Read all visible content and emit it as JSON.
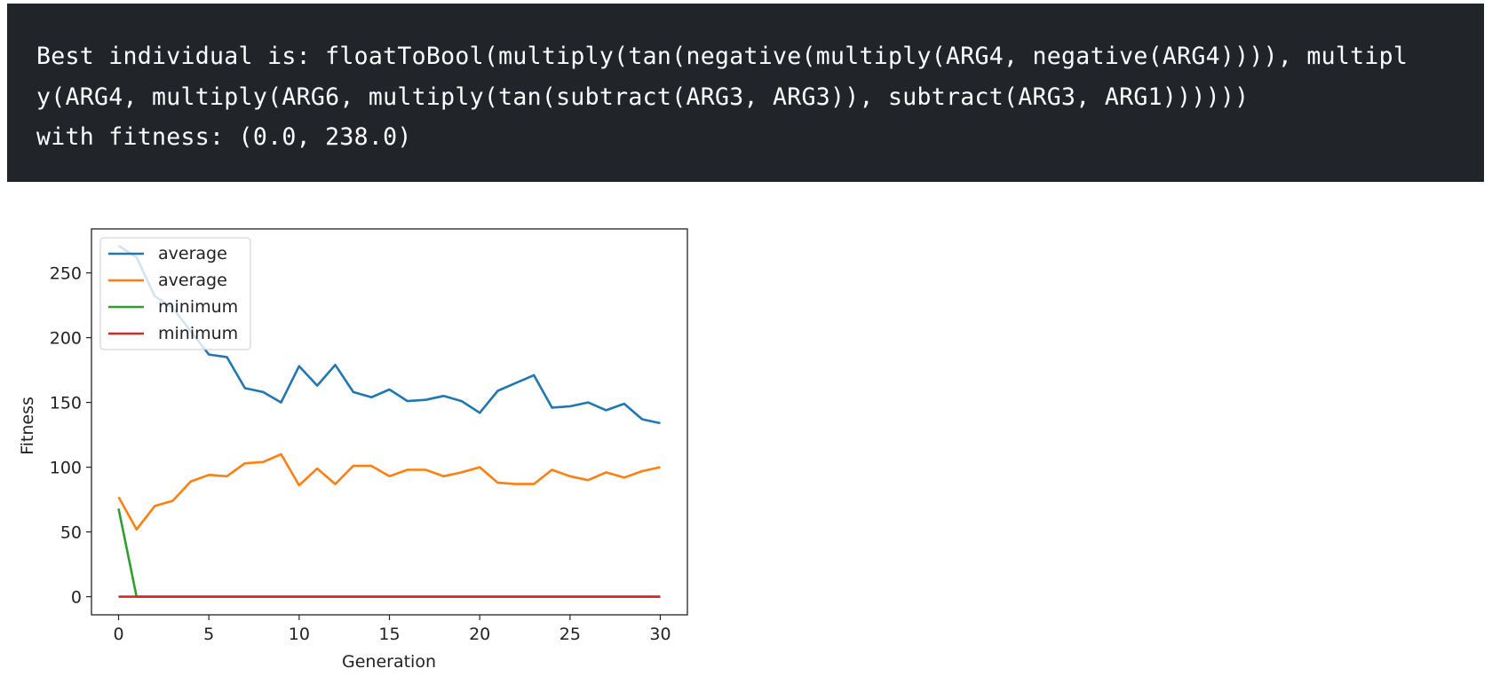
{
  "output": {
    "lines": [
      "Best individual is: floatToBool(multiply(tan(negative(multiply(ARG4, negative(ARG4)))), multipl",
      "y(ARG4, multiply(ARG6, multiply(tan(subtract(ARG3, ARG3)), subtract(ARG3, ARG1))))))",
      "with fitness: (0.0, 238.0)"
    ]
  },
  "chart_data": {
    "type": "line",
    "title": "",
    "xlabel": "Generation",
    "ylabel": "Fitness",
    "xlim": [
      -1.5,
      31.5
    ],
    "ylim": [
      -14,
      284
    ],
    "xticks": [
      0,
      5,
      10,
      15,
      20,
      25,
      30
    ],
    "yticks": [
      0,
      50,
      100,
      150,
      200,
      250
    ],
    "legend_position": "upper left",
    "grid": false,
    "x": [
      0,
      1,
      2,
      3,
      4,
      5,
      6,
      7,
      8,
      9,
      10,
      11,
      12,
      13,
      14,
      15,
      16,
      17,
      18,
      19,
      20,
      21,
      22,
      23,
      24,
      25,
      26,
      27,
      28,
      29,
      30
    ],
    "series": [
      {
        "name": "average",
        "color": "#1f77b4",
        "values": [
          271,
          262,
          232,
          223,
          205,
          187,
          185,
          161,
          158,
          150,
          178,
          163,
          179,
          158,
          154,
          160,
          151,
          152,
          155,
          151,
          142,
          159,
          165,
          171,
          146,
          147,
          150,
          144,
          149,
          137,
          134
        ]
      },
      {
        "name": "average",
        "color": "#ff7f0e",
        "values": [
          77,
          52,
          70,
          74,
          89,
          94,
          93,
          103,
          104,
          110,
          86,
          99,
          87,
          101,
          101,
          93,
          98,
          98,
          93,
          96,
          100,
          88,
          87,
          87,
          98,
          93,
          90,
          96,
          92,
          97,
          100
        ]
      },
      {
        "name": "minimum",
        "color": "#2ca02c",
        "values": [
          68,
          0,
          0,
          0,
          0,
          0,
          0,
          0,
          0,
          0,
          0,
          0,
          0,
          0,
          0,
          0,
          0,
          0,
          0,
          0,
          0,
          0,
          0,
          0,
          0,
          0,
          0,
          0,
          0,
          0,
          0
        ]
      },
      {
        "name": "minimum",
        "color": "#d62728",
        "values": [
          0,
          0,
          0,
          0,
          0,
          0,
          0,
          0,
          0,
          0,
          0,
          0,
          0,
          0,
          0,
          0,
          0,
          0,
          0,
          0,
          0,
          0,
          0,
          0,
          0,
          0,
          0,
          0,
          0,
          0,
          0
        ]
      }
    ]
  }
}
